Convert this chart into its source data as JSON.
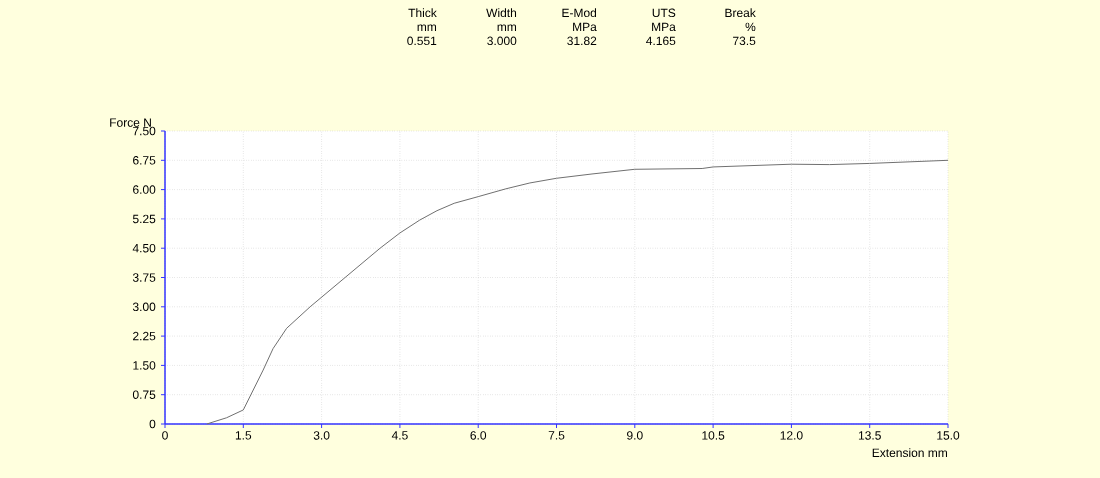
{
  "chart_data": {
    "type": "line",
    "xlabel": "Extension mm",
    "ylabel": "Force N",
    "annotations": [
      "Thick",
      "mm",
      "0.551",
      "Width",
      "mm",
      "3.000",
      "E-Mod",
      "MPa",
      "31.82",
      "UTS",
      "MPa",
      "4.165",
      "Break",
      "%",
      "73.5"
    ],
    "series": [
      {
        "color": "#707070",
        "x": [
          0.8,
          1.18,
          1.5,
          1.69,
          1.88,
          2.07,
          2.23,
          2.33,
          2.78,
          3.45,
          4.12,
          4.5,
          4.88,
          5.21,
          5.54,
          6.0,
          6.53,
          6.99,
          7.5,
          8.18,
          9.0,
          10.29,
          10.5,
          12.0,
          12.73,
          13.5,
          15.0
        ],
        "values": [
          0,
          0.16,
          0.36,
          0.87,
          1.38,
          1.93,
          2.25,
          2.45,
          3.0,
          3.75,
          4.5,
          4.89,
          5.22,
          5.46,
          5.65,
          5.82,
          6.02,
          6.17,
          6.29,
          6.4,
          6.52,
          6.54,
          6.58,
          6.65,
          6.64,
          6.67,
          6.75
        ]
      }
    ],
    "xlim": [
      0,
      15
    ],
    "ylim": [
      0,
      7.5
    ],
    "xticks": [
      0,
      1.5,
      {
        "value": 3,
        "label": "3.0"
      },
      4.5,
      {
        "value": 6,
        "label": "6.0"
      },
      7.5,
      {
        "value": 9,
        "label": "9.0"
      },
      10.5,
      {
        "value": 12,
        "label": "12.0"
      },
      13.5,
      {
        "value": 15,
        "label": "15.0"
      }
    ],
    "yticks": [
      0,
      0.75,
      {
        "value": 1.5,
        "label": "1.50"
      },
      2.25,
      {
        "value": 3,
        "label": "3.00"
      },
      3.75,
      {
        "value": 4.5,
        "label": "4.50"
      },
      5.25,
      {
        "value": 6,
        "label": "6.00"
      },
      6.75,
      {
        "value": 7.5,
        "label": "7.50"
      }
    ],
    "grid": true
  }
}
